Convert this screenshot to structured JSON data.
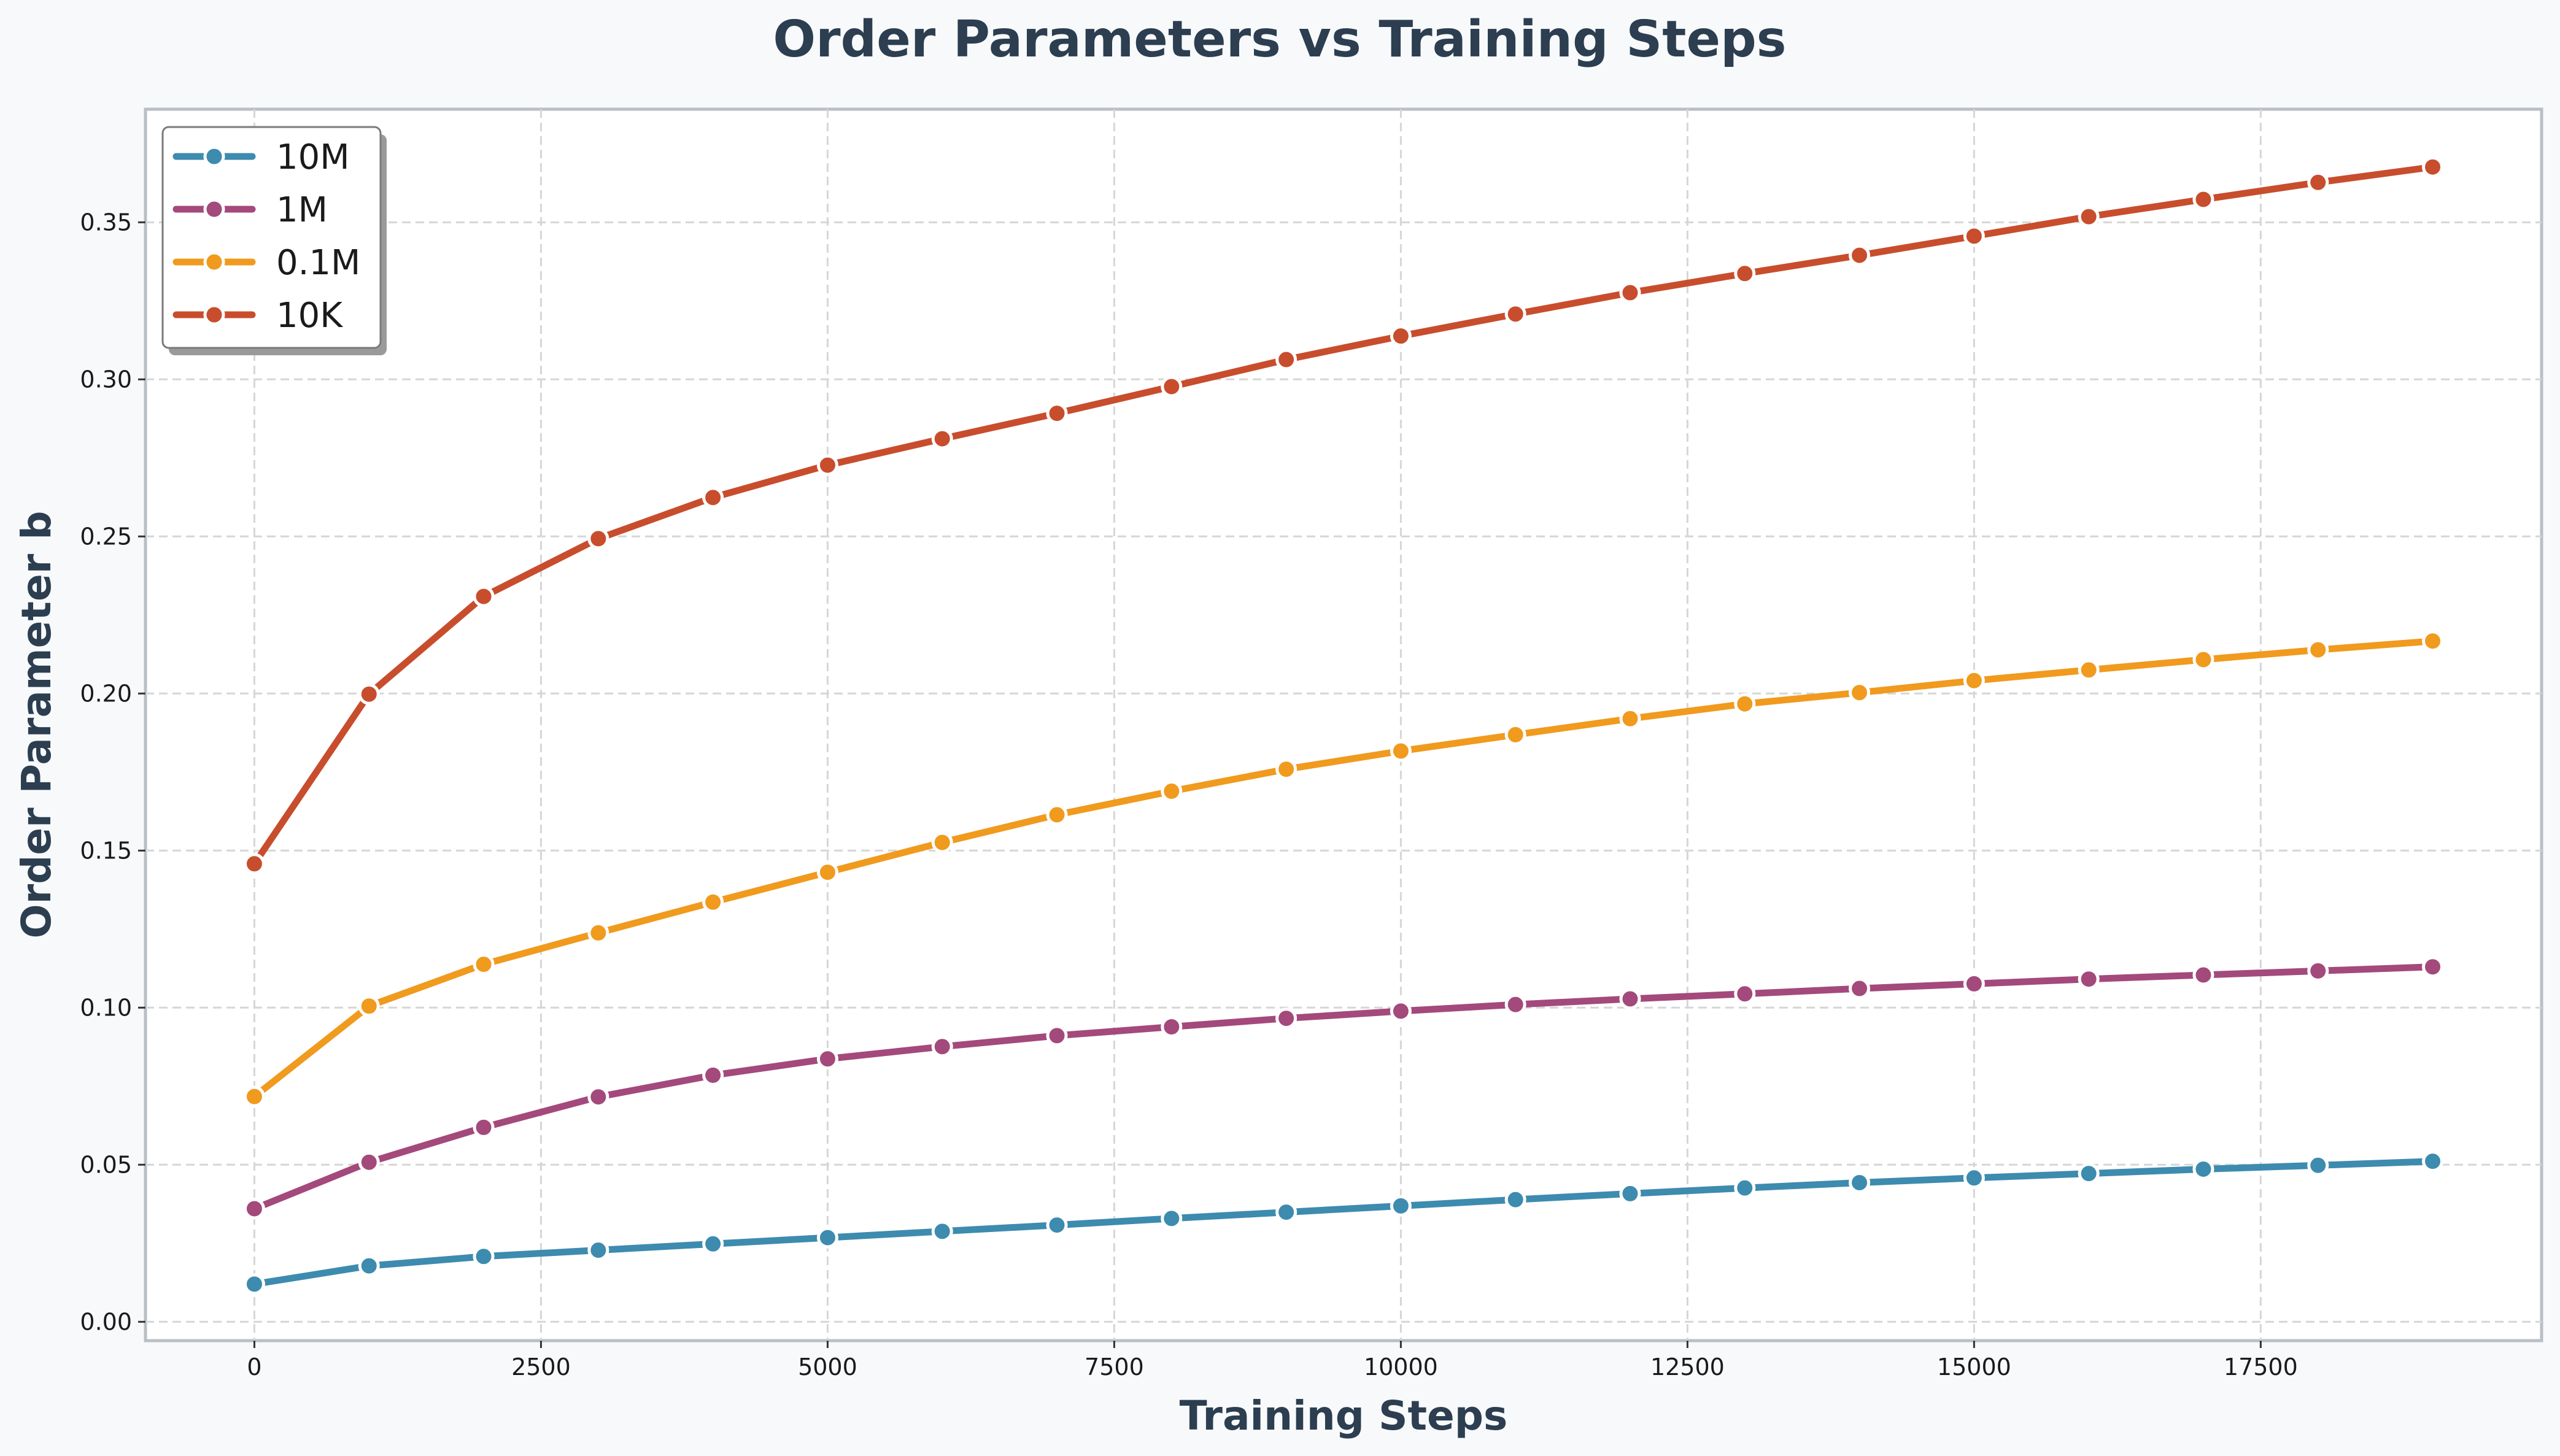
{
  "chart_data": {
    "type": "line",
    "title": "Order Parameters vs Training Steps",
    "xlabel": "Training Steps",
    "ylabel": "Order Parameter b",
    "xlim": [
      -950,
      19950
    ],
    "ylim": [
      -0.006,
      0.386
    ],
    "xticks": [
      0,
      2500,
      5000,
      7500,
      10000,
      12500,
      15000,
      17500
    ],
    "yticks": [
      "0.00",
      "0.05",
      "0.10",
      "0.15",
      "0.20",
      "0.25",
      "0.30",
      "0.35"
    ],
    "grid": true,
    "legend_position": "top-left",
    "x": [
      0,
      1000,
      2000,
      3000,
      4000,
      5000,
      6000,
      7000,
      8000,
      9000,
      10000,
      11000,
      12000,
      13000,
      14000,
      15000,
      16000,
      17000,
      18000,
      19000
    ],
    "series": [
      {
        "name": "10M",
        "color": "#3d8baf",
        "values": [
          0.012,
          0.0178,
          0.0208,
          0.0228,
          0.0248,
          0.0268,
          0.0288,
          0.0308,
          0.0329,
          0.0349,
          0.0369,
          0.0389,
          0.0408,
          0.0426,
          0.0443,
          0.0458,
          0.0472,
          0.0486,
          0.0498,
          0.0511
        ]
      },
      {
        "name": "1M",
        "color": "#a4497b",
        "values": [
          0.036,
          0.0508,
          0.0619,
          0.0716,
          0.0785,
          0.0837,
          0.0876,
          0.0911,
          0.0939,
          0.0966,
          0.0989,
          0.101,
          0.1028,
          0.1044,
          0.1061,
          0.1076,
          0.1091,
          0.1104,
          0.1117,
          0.113
        ]
      },
      {
        "name": "0.1M",
        "color": "#f09a1e",
        "values": [
          0.0717,
          0.1005,
          0.1138,
          0.1238,
          0.1336,
          0.1431,
          0.1526,
          0.1614,
          0.1689,
          0.1759,
          0.1817,
          0.1869,
          0.192,
          0.1967,
          0.2003,
          0.2041,
          0.2075,
          0.2108,
          0.2139,
          0.2167
        ]
      },
      {
        "name": "10K",
        "color": "#c84d2d",
        "values": [
          0.1458,
          0.1998,
          0.2309,
          0.2493,
          0.2624,
          0.2727,
          0.2811,
          0.2892,
          0.2977,
          0.3063,
          0.3138,
          0.3208,
          0.3276,
          0.3337,
          0.3395,
          0.3456,
          0.3518,
          0.3573,
          0.3627,
          0.3676
        ]
      }
    ]
  }
}
